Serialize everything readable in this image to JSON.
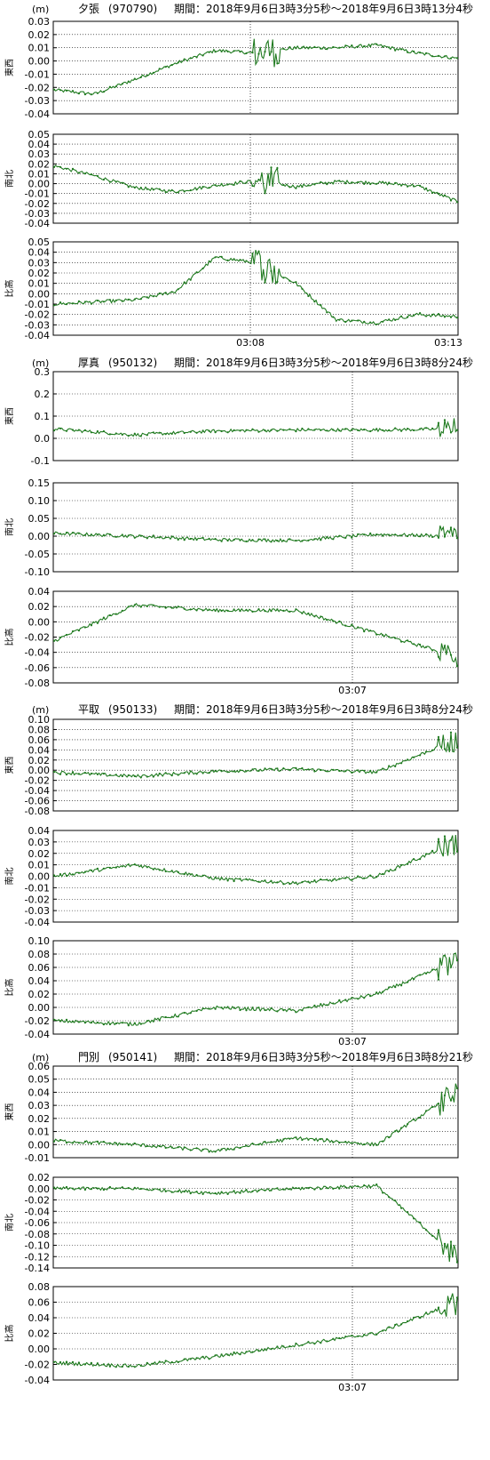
{
  "unit": "(m)",
  "line_color": "#1f7a1f",
  "stations": [
    {
      "name": "夕張",
      "code": "(970790)",
      "period": "期間：2018年9月6日3時3分5秒～2018年9月6日3時13分4秒",
      "x_ticks": [
        "03:08",
        "03:13"
      ],
      "panels": [
        {
          "component": "東西",
          "ylim": [
            -0.04,
            0.03
          ],
          "yticks": [
            "-0.04",
            "-0.03",
            "-0.02",
            "-0.01",
            "0.00",
            "0.01",
            "0.02",
            "0.03"
          ]
        },
        {
          "component": "南北",
          "ylim": [
            -0.04,
            0.05
          ],
          "yticks": [
            "-0.04",
            "-0.03",
            "-0.02",
            "-0.01",
            "0.00",
            "0.01",
            "0.02",
            "0.03",
            "0.04",
            "0.05"
          ]
        },
        {
          "component": "比高",
          "ylim": [
            -0.04,
            0.05
          ],
          "yticks": [
            "-0.04",
            "-0.03",
            "-0.02",
            "-0.01",
            "0.00",
            "0.01",
            "0.02",
            "0.03",
            "0.04",
            "0.05"
          ]
        }
      ]
    },
    {
      "name": "厚真",
      "code": "(950132)",
      "period": "期間：2018年9月6日3時3分5秒～2018年9月6日3時8分24秒",
      "x_ticks": [
        "03:07"
      ],
      "panels": [
        {
          "component": "東西",
          "ylim": [
            -0.15,
            0.3
          ],
          "yticks": [
            "-0.1",
            "0.0",
            "0.1",
            "0.2",
            "0.3"
          ]
        },
        {
          "component": "南北",
          "ylim": [
            -0.1,
            0.15
          ],
          "yticks": [
            "-0.10",
            "-0.05",
            "0.00",
            "0.05",
            "0.10",
            "0.15"
          ]
        },
        {
          "component": "比高",
          "ylim": [
            -0.08,
            0.04
          ],
          "yticks": [
            "-0.08",
            "-0.06",
            "-0.04",
            "-0.02",
            "0.00",
            "0.02",
            "0.04"
          ]
        }
      ]
    },
    {
      "name": "平取",
      "code": "(950133)",
      "period": "期間：2018年9月6日3時3分5秒～2018年9月6日3時8分24秒",
      "x_ticks": [
        "03:07"
      ],
      "panels": [
        {
          "component": "東西",
          "ylim": [
            -0.08,
            0.1
          ],
          "yticks": [
            "-0.08",
            "-0.06",
            "-0.04",
            "-0.02",
            "0.00",
            "0.02",
            "0.04",
            "0.06",
            "0.08",
            "0.10"
          ]
        },
        {
          "component": "南北",
          "ylim": [
            -0.04,
            0.04
          ],
          "yticks": [
            "-0.04",
            "-0.03",
            "-0.02",
            "-0.01",
            "0.00",
            "0.01",
            "0.02",
            "0.03",
            "0.04"
          ]
        },
        {
          "component": "比高",
          "ylim": [
            -0.04,
            0.1
          ],
          "yticks": [
            "-0.04",
            "-0.02",
            "0.00",
            "0.02",
            "0.04",
            "0.06",
            "0.08",
            "0.10"
          ]
        }
      ]
    },
    {
      "name": "門別",
      "code": "(950141)",
      "period": "期間：2018年9月6日3時3分5秒～2018年9月6日3時8分21秒",
      "x_ticks": [
        "03:07"
      ],
      "panels": [
        {
          "component": "東西",
          "ylim": [
            -0.01,
            0.06
          ],
          "yticks": [
            "-0.01",
            "0.00",
            "0.01",
            "0.02",
            "0.03",
            "0.04",
            "0.05",
            "0.06"
          ]
        },
        {
          "component": "南北",
          "ylim": [
            -0.14,
            0.02
          ],
          "yticks": [
            "-0.14",
            "-0.12",
            "-0.10",
            "-0.08",
            "-0.06",
            "-0.04",
            "-0.02",
            "0.00",
            "0.02"
          ]
        },
        {
          "component": "比高",
          "ylim": [
            -0.04,
            0.08
          ],
          "yticks": [
            "-0.04",
            "-0.02",
            "0.00",
            "0.02",
            "0.04",
            "0.06",
            "0.08"
          ]
        }
      ]
    }
  ],
  "chart_data": [
    {
      "type": "line",
      "station": "夕張",
      "component": "東西",
      "x": [
        "03:03",
        "03:04",
        "03:05",
        "03:06",
        "03:07",
        "03:08",
        "03:09",
        "03:10",
        "03:11",
        "03:12",
        "03:13"
      ],
      "values": [
        -0.022,
        -0.025,
        -0.014,
        -0.002,
        0.008,
        0.006,
        0.01,
        0.01,
        0.012,
        0.006,
        0.002
      ]
    },
    {
      "type": "line",
      "station": "夕張",
      "component": "南北",
      "x": [
        "03:03",
        "03:04",
        "03:05",
        "03:06",
        "03:07",
        "03:08",
        "03:09",
        "03:10",
        "03:11",
        "03:12",
        "03:13"
      ],
      "values": [
        0.018,
        0.008,
        -0.004,
        -0.008,
        -0.002,
        0.003,
        -0.003,
        0.002,
        0.001,
        -0.002,
        -0.018
      ]
    },
    {
      "type": "line",
      "station": "夕張",
      "component": "比高",
      "x": [
        "03:03",
        "03:04",
        "03:05",
        "03:06",
        "03:07",
        "03:08",
        "03:09",
        "03:10",
        "03:11",
        "03:12",
        "03:13"
      ],
      "values": [
        -0.01,
        -0.008,
        -0.006,
        0.002,
        0.035,
        0.03,
        0.01,
        -0.025,
        -0.028,
        -0.02,
        -0.022
      ]
    },
    {
      "type": "line",
      "station": "厚真",
      "component": "東西",
      "x": [
        "03:03",
        "03:04",
        "03:05",
        "03:06",
        "03:07",
        "03:08"
      ],
      "values": [
        0.01,
        -0.02,
        0.0,
        0.005,
        0.005,
        0.01
      ]
    },
    {
      "type": "line",
      "station": "厚真",
      "component": "南北",
      "x": [
        "03:03",
        "03:04",
        "03:05",
        "03:06",
        "03:07",
        "03:08"
      ],
      "values": [
        0.008,
        0.0,
        -0.01,
        -0.012,
        0.005,
        0.0
      ]
    },
    {
      "type": "line",
      "station": "厚真",
      "component": "比高",
      "x": [
        "03:03",
        "03:04",
        "03:05",
        "03:06",
        "03:07",
        "03:08"
      ],
      "values": [
        -0.025,
        0.022,
        0.015,
        0.015,
        -0.015,
        -0.045
      ]
    },
    {
      "type": "line",
      "station": "平取",
      "component": "東西",
      "x": [
        "03:03",
        "03:04",
        "03:05",
        "03:06",
        "03:07",
        "03:08"
      ],
      "values": [
        -0.004,
        -0.012,
        -0.002,
        0.002,
        -0.004,
        0.06
      ]
    },
    {
      "type": "line",
      "station": "平取",
      "component": "南北",
      "x": [
        "03:03",
        "03:04",
        "03:05",
        "03:06",
        "03:07",
        "03:08"
      ],
      "values": [
        0.0,
        0.01,
        -0.002,
        -0.006,
        0.0,
        0.03
      ]
    },
    {
      "type": "line",
      "station": "平取",
      "component": "比高",
      "x": [
        "03:03",
        "03:04",
        "03:05",
        "03:06",
        "03:07",
        "03:08"
      ],
      "values": [
        -0.02,
        -0.025,
        0.0,
        -0.005,
        0.02,
        0.07
      ]
    },
    {
      "type": "line",
      "station": "門別",
      "component": "東西",
      "x": [
        "03:03",
        "03:04",
        "03:05",
        "03:06",
        "03:07",
        "03:08"
      ],
      "values": [
        0.003,
        0.0,
        -0.005,
        0.005,
        0.0,
        0.04
      ]
    },
    {
      "type": "line",
      "station": "門別",
      "component": "南北",
      "x": [
        "03:03",
        "03:04",
        "03:05",
        "03:06",
        "03:07",
        "03:08"
      ],
      "values": [
        0.0,
        0.0,
        -0.008,
        0.0,
        0.005,
        -0.12
      ]
    },
    {
      "type": "line",
      "station": "門別",
      "component": "比高",
      "x": [
        "03:03",
        "03:04",
        "03:05",
        "03:06",
        "03:07",
        "03:08"
      ],
      "values": [
        -0.018,
        -0.022,
        -0.01,
        0.005,
        0.02,
        0.06
      ]
    }
  ]
}
